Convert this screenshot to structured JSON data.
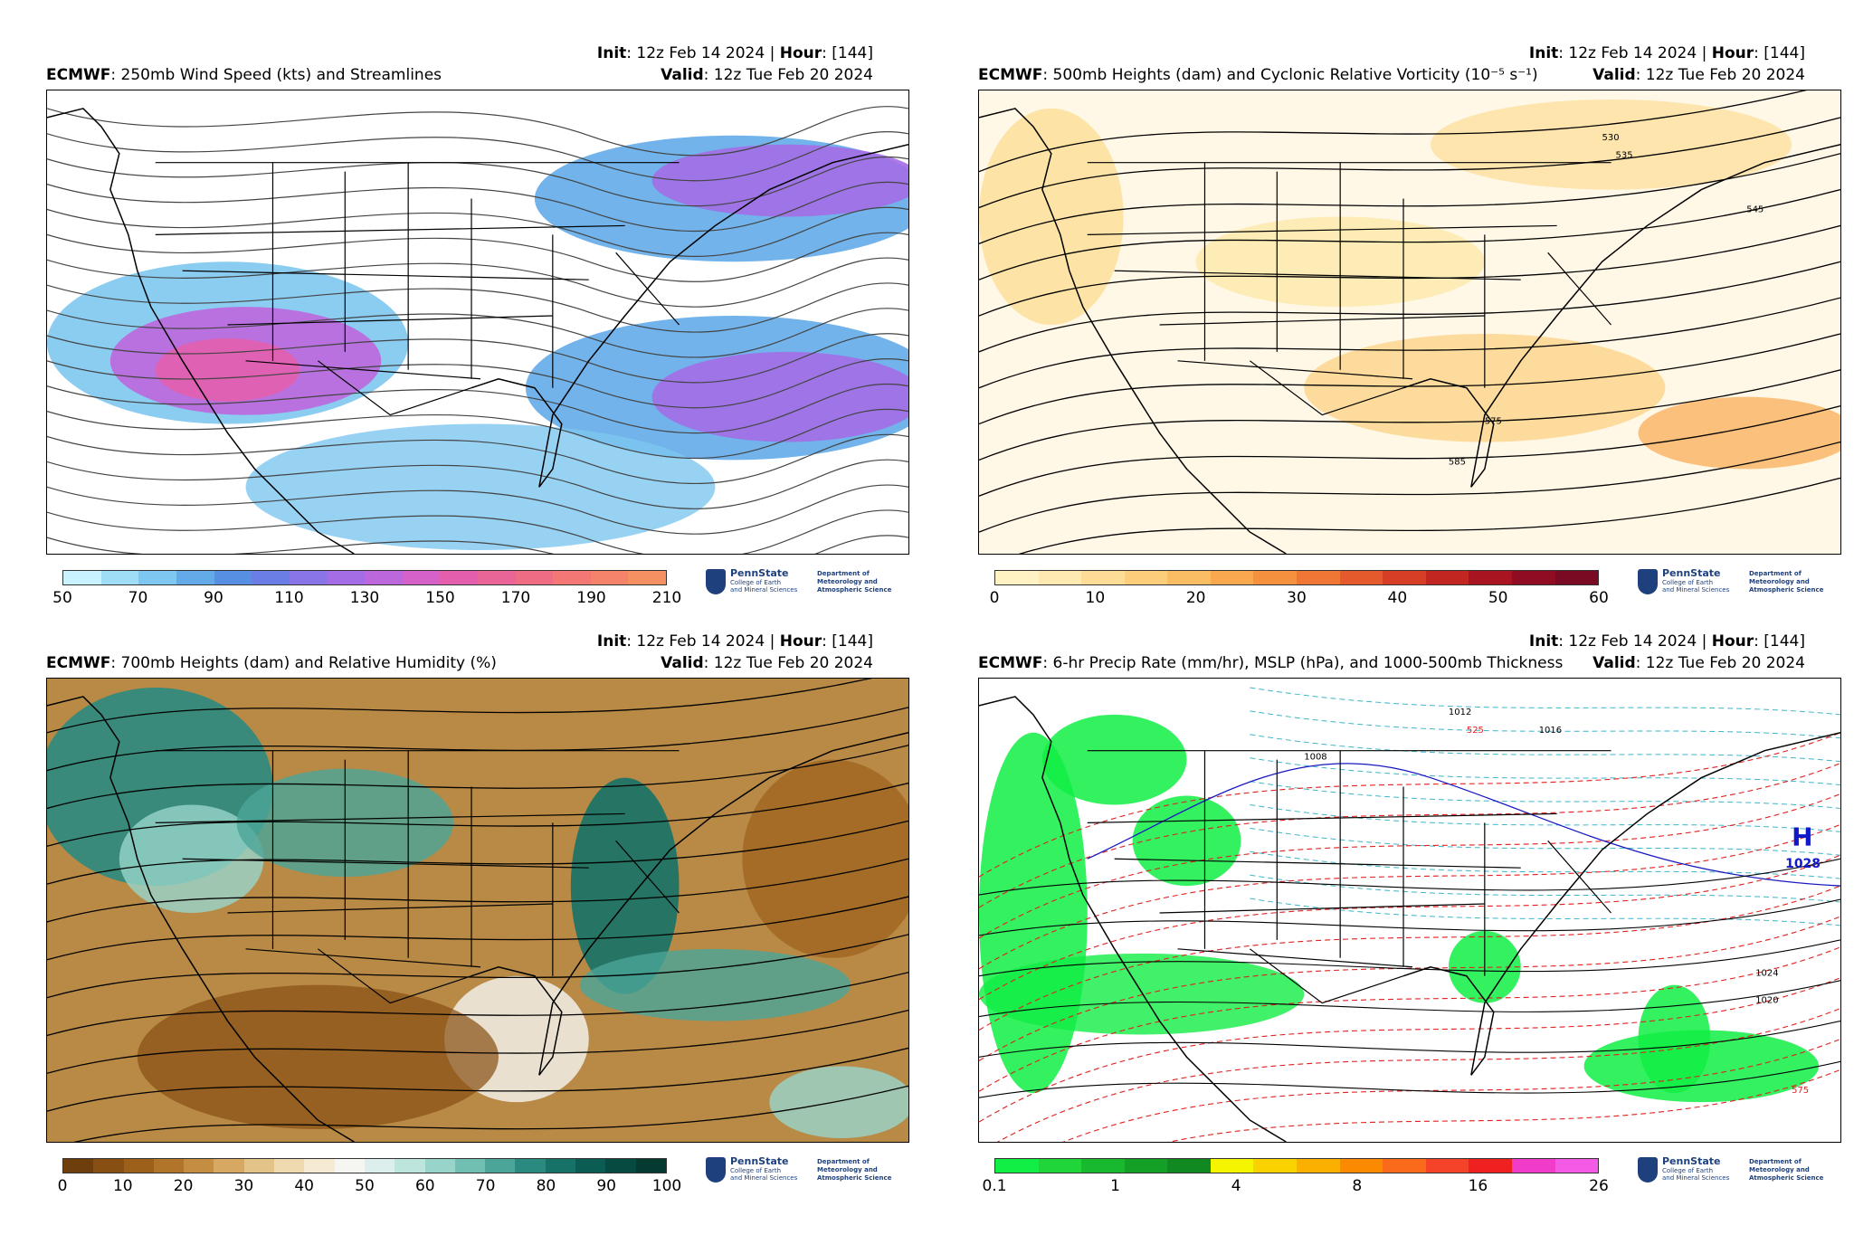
{
  "init": {
    "label": "Init",
    "value": "12z Feb 14 2024",
    "hour_label": "Hour",
    "hour_value": "[144]"
  },
  "valid": {
    "label": "Valid",
    "value": "12z Tue Feb 20 2024"
  },
  "logo": {
    "name": "PennState",
    "college": "College of Earth\nand Mineral Sciences",
    "department": "Department of\nMeteorology and\nAtmospheric Science"
  },
  "panels": [
    {
      "model": "ECMWF",
      "title": "250mb Wind Speed (kts) and Streamlines",
      "colorbar": {
        "ticks": [
          "50",
          "70",
          "90",
          "110",
          "130",
          "150",
          "170",
          "190",
          "210"
        ],
        "colors": [
          "#c9f2ff",
          "#9fdcf5",
          "#7ec7f0",
          "#62abe8",
          "#5790e2",
          "#6a7ee6",
          "#8975e8",
          "#a46de6",
          "#bd67dc",
          "#d561c9",
          "#e35fae",
          "#ea6597",
          "#ef6d84",
          "#f27775",
          "#f4836a",
          "#f59062"
        ]
      }
    },
    {
      "model": "ECMWF",
      "title": "500mb Heights (dam) and Cyclonic Relative Vorticity (10⁻⁵ s⁻¹)",
      "contour_labels": [
        "530",
        "535",
        "545",
        "575",
        "585"
      ],
      "colorbar": {
        "ticks": [
          "0",
          "10",
          "20",
          "30",
          "40",
          "50",
          "60"
        ],
        "colors": [
          "#fff3c4",
          "#feeab0",
          "#fddd96",
          "#fcce7c",
          "#fbbd63",
          "#f9a84e",
          "#f5903f",
          "#ef7634",
          "#e55a2c",
          "#d63f26",
          "#c12621",
          "#a8141f",
          "#900c22",
          "#7a0a23"
        ]
      }
    },
    {
      "model": "ECMWF",
      "title": "700mb Heights (dam) and Relative Humidity (%)",
      "colorbar": {
        "ticks": [
          "0",
          "10",
          "20",
          "30",
          "40",
          "50",
          "60",
          "70",
          "80",
          "90",
          "100"
        ],
        "colors": [
          "#6e3f0c",
          "#874f12",
          "#9c601a",
          "#b07528",
          "#c48d41",
          "#d6a862",
          "#e4c389",
          "#efdab0",
          "#f6ead3",
          "#f5f5f1",
          "#dcefec",
          "#bde4dd",
          "#98d4ca",
          "#71bfb2",
          "#4ba598",
          "#2b8a7f",
          "#167267",
          "#0b5c52",
          "#064a41",
          "#053a31"
        ]
      }
    },
    {
      "model": "ECMWF",
      "title": "6-hr Precip Rate (mm/hr), MSLP (hPa), and 1000-500mb Thickness",
      "high_label": "H",
      "high_value": "1028",
      "contour_labels": [
        "1016",
        "1012",
        "1008",
        "1020",
        "1024",
        "525",
        "575"
      ],
      "colorbar": {
        "ticks": [
          "0.1",
          "1",
          "4",
          "8",
          "16",
          "26"
        ],
        "colors": [
          "#11ee44",
          "#1fd53a",
          "#18b82f",
          "#14a026",
          "#108a20",
          "#f5f500",
          "#f9d200",
          "#fbb000",
          "#fc8a00",
          "#fb6a1a",
          "#f5432a",
          "#ee2020",
          "#f03cc8",
          "#f45ae6"
        ]
      }
    }
  ]
}
